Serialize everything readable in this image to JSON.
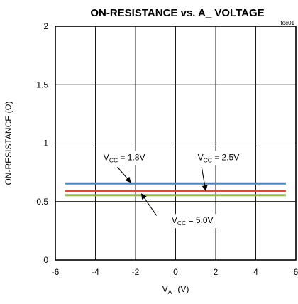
{
  "chart_data": {
    "type": "line",
    "title": "ON-RESISTANCE vs. A_ VOLTAGE",
    "figure_id": "toc01",
    "xlabel": {
      "main": "V",
      "sub": "A_",
      "unit": " (V)"
    },
    "ylabel": "ON-RESISTANCE (Ω)",
    "xlim": [
      -6,
      6
    ],
    "ylim": [
      0,
      2
    ],
    "xticks": [
      -6,
      -4,
      -2,
      0,
      2,
      4,
      6
    ],
    "yticks": [
      0,
      0.5,
      1,
      1.5,
      2
    ],
    "xtick_labels": [
      "-6",
      "-4",
      "-2",
      "0",
      "2",
      "4",
      "6"
    ],
    "ytick_labels": [
      "0",
      "0.5",
      "1",
      "1.5",
      "2"
    ],
    "grid": true,
    "series": [
      {
        "name": "VCC = 1.8V",
        "color": "#4a86c5",
        "x": [
          -5.5,
          5.5
        ],
        "y": [
          0.655,
          0.655
        ]
      },
      {
        "name": "VCC = 2.5V",
        "color": "#d94a3d",
        "x": [
          -5.5,
          5.5
        ],
        "y": [
          0.59,
          0.59
        ]
      },
      {
        "name": "VCC = 5.0V",
        "color": "#8cbf3f",
        "x": [
          -5.5,
          5.5
        ],
        "y": [
          0.555,
          0.555
        ]
      }
    ],
    "annotations": [
      {
        "prefix": "V",
        "sub": "CC",
        "suffix": " = 1.8V",
        "text_at": [
          -3.6,
          0.855
        ],
        "arrow_from": [
          -2.9,
          0.795
        ],
        "arrow_to": [
          -2.25,
          0.665
        ]
      },
      {
        "prefix": "V",
        "sub": "CC",
        "suffix": " = 2.5V",
        "text_at": [
          1.1,
          0.855
        ],
        "arrow_from": [
          1.3,
          0.795
        ],
        "arrow_to": [
          1.5,
          0.595
        ]
      },
      {
        "prefix": "V",
        "sub": "CC",
        "suffix": " = 5.0V",
        "text_at": [
          -0.2,
          0.315
        ],
        "arrow_from": [
          -0.95,
          0.38
        ],
        "arrow_to": [
          -1.7,
          0.565
        ]
      }
    ]
  }
}
